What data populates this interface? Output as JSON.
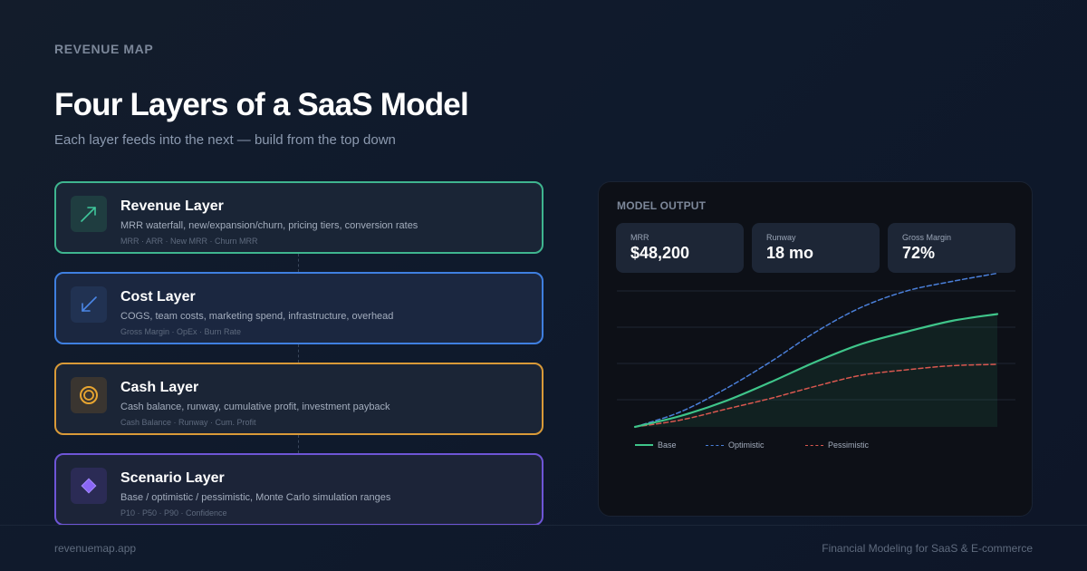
{
  "header": {
    "brand": "REVENUE MAP",
    "title": "Four Layers of a SaaS Model",
    "subtitle": "Each layer feeds into the next — build from the top down"
  },
  "layers": [
    {
      "name": "Revenue Layer",
      "description": "MRR waterfall, new/expansion/churn, pricing tiers, conversion rates",
      "tags": "MRR · ARR · New MRR · Churn MRR",
      "icon": "trend-up-arrow-icon",
      "color": "#3fb58f"
    },
    {
      "name": "Cost Layer",
      "description": "COGS, team costs, marketing spend, infrastructure, overhead",
      "tags": "Gross Margin · OpEx · Burn Rate",
      "icon": "trend-down-arrow-icon",
      "color": "#3f7fe0"
    },
    {
      "name": "Cash Layer",
      "description": "Cash balance, runway, cumulative profit, investment payback",
      "tags": "Cash Balance · Runway · Cum. Profit",
      "icon": "coin-icon",
      "color": "#e0a03a"
    },
    {
      "name": "Scenario Layer",
      "description": "Base / optimistic / pessimistic, Monte Carlo simulation ranges",
      "tags": "P10 · P50 · P90 · Confidence",
      "icon": "diamond-icon",
      "color": "#7a5ae6"
    }
  ],
  "panel": {
    "title": "MODEL OUTPUT",
    "stats": [
      {
        "label": "MRR",
        "value": "$48,200"
      },
      {
        "label": "Runway",
        "value": "18 mo"
      },
      {
        "label": "Gross Margin",
        "value": "72%"
      }
    ]
  },
  "chart_data": {
    "type": "line",
    "title": "",
    "xlabel": "",
    "ylabel": "",
    "x": [
      0,
      1,
      2,
      3,
      4,
      5,
      6,
      7,
      8
    ],
    "series": [
      {
        "name": "Base",
        "style": "solid",
        "fill": true,
        "color": "#3fc58a",
        "values": [
          0,
          8,
          19,
          33,
          48,
          61,
          70,
          78,
          83
        ]
      },
      {
        "name": "Optimistic",
        "style": "dashed",
        "color": "#4a7fd9",
        "values": [
          0,
          11,
          28,
          48,
          70,
          88,
          100,
          107,
          113
        ]
      },
      {
        "name": "Pessimistic",
        "style": "dashed",
        "color": "#d9574f",
        "values": [
          0,
          5,
          13,
          21,
          30,
          38,
          42,
          45,
          46
        ]
      }
    ],
    "ylim": [
      0,
      120
    ],
    "grid": true,
    "legend_position": "bottom-left"
  },
  "footer": {
    "left": "revenuemap.app",
    "right": "Financial Modeling for SaaS & E-commerce"
  }
}
